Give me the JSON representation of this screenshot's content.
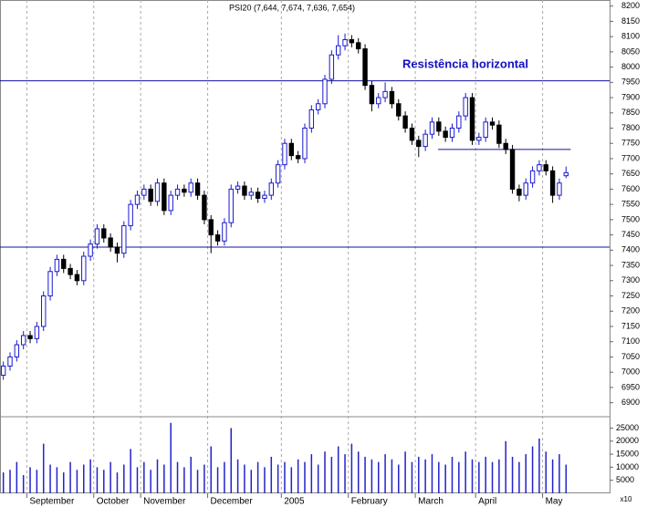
{
  "chart_data": {
    "type": "candlestick",
    "title": "PSI20 (7,644, 7,674, 7,636, 7,654)",
    "annotation": "Resistência horizontal",
    "up_color": "#1a1ad0",
    "down_color": "#000000",
    "volume_color": "#2222cc",
    "line_color": "#1010a0",
    "xlim": [
      -0.5,
      90.5
    ],
    "xticks": [
      {
        "value": 3.5,
        "label": "September"
      },
      {
        "value": 13.5,
        "label": "October"
      },
      {
        "value": 20.5,
        "label": "November"
      },
      {
        "value": 30.5,
        "label": "December"
      },
      {
        "value": 41.5,
        "label": "2005"
      },
      {
        "value": 51.5,
        "label": "February"
      },
      {
        "value": 61.5,
        "label": "March"
      },
      {
        "value": 70.5,
        "label": "April"
      },
      {
        "value": 80.5,
        "label": "May"
      }
    ],
    "ylim": [
      6860,
      8220
    ],
    "yticks": [
      6900,
      6950,
      7000,
      7050,
      7100,
      7150,
      7200,
      7250,
      7300,
      7350,
      7400,
      7450,
      7500,
      7550,
      7600,
      7650,
      7700,
      7750,
      7800,
      7850,
      7900,
      7950,
      8000,
      8050,
      8100,
      8150,
      8200
    ],
    "volume_ylim": [
      0,
      29000
    ],
    "volume_yticks": [
      5000,
      10000,
      15000,
      20000,
      25000
    ],
    "volume_note": "x10",
    "levels": [
      {
        "value": 7955
      },
      {
        "value": 7410
      },
      {
        "value": 7730,
        "x": [
          64.9,
          84.7
        ]
      }
    ],
    "open": [
      6990,
      7020,
      7050,
      7090,
      7120,
      7110,
      7150,
      7250,
      7330,
      7370,
      7340,
      7320,
      7300,
      7380,
      7420,
      7470,
      7440,
      7410,
      7390,
      7480,
      7550,
      7580,
      7600,
      7560,
      7620,
      7530,
      7580,
      7600,
      7590,
      7620,
      7580,
      7500,
      7450,
      7430,
      7490,
      7600,
      7610,
      7580,
      7590,
      7570,
      7580,
      7620,
      7680,
      7750,
      7710,
      7700,
      7800,
      7860,
      7880,
      7960,
      8040,
      8070,
      8090,
      8080,
      8060,
      7940,
      7880,
      7900,
      7920,
      7880,
      7840,
      7800,
      7760,
      7740,
      7780,
      7820,
      7790,
      7770,
      7800,
      7840,
      7900,
      7760,
      7770,
      7820,
      7810,
      7750,
      7730,
      7600,
      7580,
      7620,
      7660,
      7680,
      7660,
      7580,
      7644
    ],
    "high": [
      7035,
      7065,
      7105,
      7135,
      7135,
      7165,
      7265,
      7345,
      7385,
      7385,
      7355,
      7335,
      7395,
      7435,
      7485,
      7485,
      7455,
      7425,
      7495,
      7565,
      7595,
      7615,
      7615,
      7635,
      7635,
      7595,
      7615,
      7615,
      7635,
      7635,
      7595,
      7515,
      7465,
      7505,
      7615,
      7625,
      7625,
      7605,
      7605,
      7595,
      7635,
      7695,
      7765,
      7765,
      7725,
      7815,
      7875,
      7895,
      7975,
      8055,
      8105,
      8110,
      8105,
      8095,
      8075,
      7955,
      7915,
      7950,
      7935,
      7895,
      7855,
      7815,
      7775,
      7795,
      7835,
      7835,
      7805,
      7815,
      7855,
      7915,
      7915,
      7785,
      7835,
      7835,
      7825,
      7765,
      7745,
      7615,
      7635,
      7675,
      7695,
      7695,
      7675,
      7635,
      7674
    ],
    "low": [
      6975,
      7005,
      7035,
      7075,
      7095,
      7095,
      7135,
      7235,
      7315,
      7325,
      7305,
      7285,
      7285,
      7365,
      7405,
      7425,
      7395,
      7360,
      7375,
      7465,
      7535,
      7565,
      7545,
      7545,
      7515,
      7515,
      7565,
      7575,
      7575,
      7565,
      7485,
      7390,
      7415,
      7415,
      7475,
      7585,
      7565,
      7565,
      7555,
      7555,
      7565,
      7605,
      7665,
      7695,
      7685,
      7685,
      7785,
      7845,
      7865,
      7945,
      8025,
      8055,
      8065,
      8045,
      7925,
      7855,
      7865,
      7885,
      7865,
      7825,
      7785,
      7745,
      7705,
      7725,
      7765,
      7775,
      7755,
      7755,
      7785,
      7825,
      7745,
      7745,
      7755,
      7795,
      7735,
      7715,
      7585,
      7560,
      7565,
      7605,
      7645,
      7645,
      7555,
      7565,
      7636
    ],
    "close": [
      7020,
      7050,
      7090,
      7120,
      7110,
      7150,
      7250,
      7330,
      7370,
      7340,
      7320,
      7300,
      7380,
      7420,
      7470,
      7440,
      7410,
      7390,
      7480,
      7550,
      7580,
      7600,
      7560,
      7620,
      7530,
      7580,
      7600,
      7590,
      7620,
      7580,
      7500,
      7450,
      7430,
      7490,
      7600,
      7610,
      7580,
      7590,
      7570,
      7580,
      7620,
      7680,
      7750,
      7710,
      7700,
      7800,
      7860,
      7880,
      7960,
      8040,
      8070,
      8090,
      8080,
      8060,
      7940,
      7880,
      7900,
      7920,
      7880,
      7840,
      7800,
      7760,
      7740,
      7780,
      7820,
      7790,
      7770,
      7800,
      7840,
      7900,
      7760,
      7770,
      7820,
      7810,
      7750,
      7730,
      7600,
      7580,
      7620,
      7660,
      7680,
      7660,
      7580,
      7620,
      7654
    ],
    "volume": [
      8000,
      9000,
      12000,
      7000,
      10000,
      9000,
      19000,
      11000,
      10000,
      8000,
      12000,
      9000,
      11000,
      13000,
      10000,
      9000,
      12000,
      8000,
      11000,
      17000,
      10000,
      12000,
      9000,
      13000,
      11000,
      27000,
      12000,
      10000,
      14000,
      9000,
      11000,
      18000,
      10000,
      12000,
      25000,
      13000,
      11000,
      9000,
      12000,
      10000,
      14000,
      11000,
      12000,
      10000,
      13000,
      12000,
      15000,
      11000,
      16000,
      14000,
      18000,
      15000,
      19000,
      16000,
      14000,
      13000,
      12000,
      15000,
      13000,
      11000,
      16000,
      12000,
      14000,
      13000,
      15000,
      12000,
      11000,
      14000,
      12000,
      16000,
      13000,
      12000,
      14000,
      12000,
      13000,
      20000,
      14000,
      12000,
      15000,
      18000,
      21000,
      16000,
      13000,
      15000,
      11000
    ]
  }
}
